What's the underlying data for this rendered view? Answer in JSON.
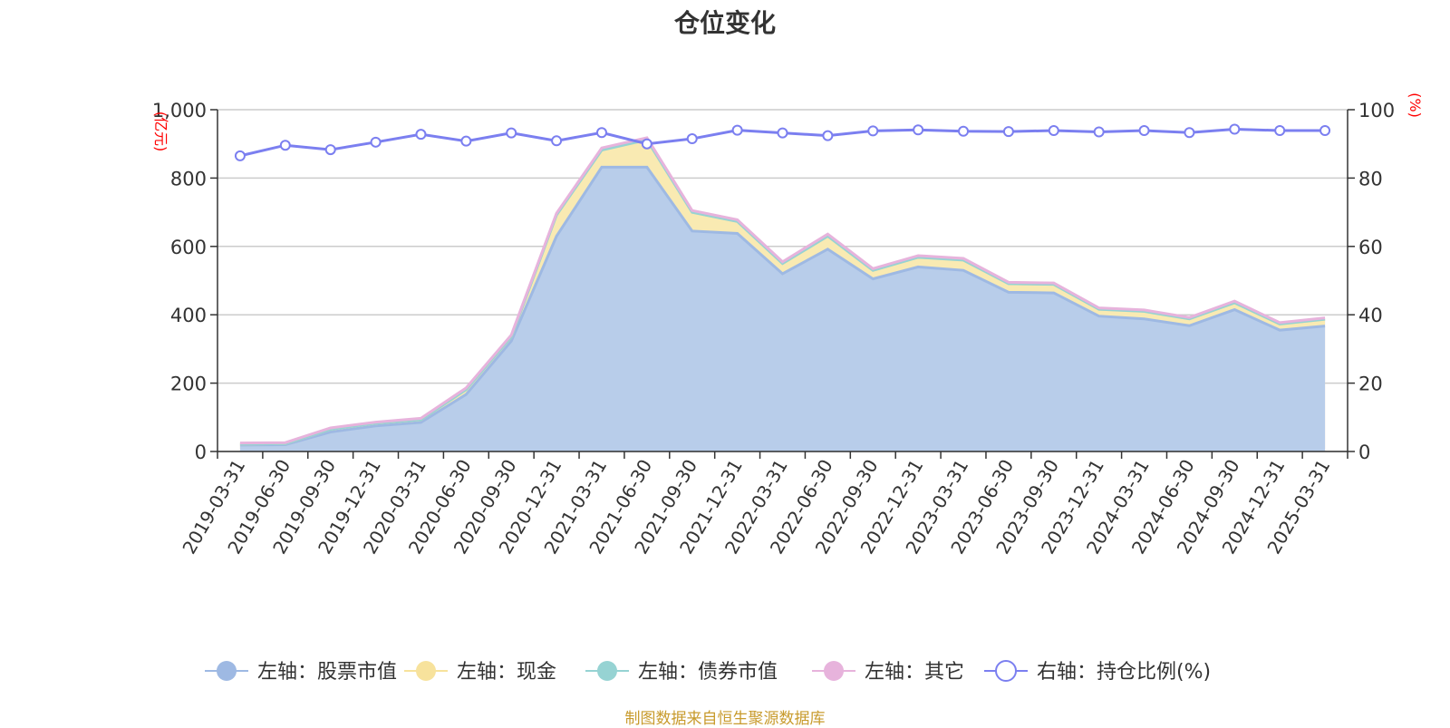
{
  "chart_data": {
    "type": "area",
    "title": "仓位变化",
    "y_left_unit": "(亿元)",
    "y_right_unit": "(%)",
    "y_left_ticks": [
      "0",
      "200",
      "400",
      "600",
      "800",
      "1,000"
    ],
    "y_right_ticks": [
      "0",
      "20",
      "40",
      "60",
      "80",
      "100"
    ],
    "y_left_range": [
      0,
      1000
    ],
    "y_right_range": [
      0,
      100
    ],
    "grid": true,
    "legend_position": "bottom",
    "categories": [
      "2019-03-31",
      "2019-06-30",
      "2019-09-30",
      "2019-12-31",
      "2020-03-31",
      "2020-06-30",
      "2020-09-30",
      "2020-12-31",
      "2021-03-31",
      "2021-06-30",
      "2021-09-30",
      "2021-12-31",
      "2022-03-31",
      "2022-06-30",
      "2022-09-30",
      "2022-12-31",
      "2023-03-31",
      "2023-06-30",
      "2023-09-30",
      "2023-12-31",
      "2024-03-31",
      "2024-06-30",
      "2024-09-30",
      "2024-12-31",
      "2025-03-31"
    ],
    "series": [
      {
        "name": "左轴：股票市值",
        "axis": "left",
        "color": "#9eb9e3",
        "fill": "#b8cdea",
        "values": [
          19,
          20,
          57,
          75,
          85,
          167,
          323,
          630,
          832,
          832,
          645,
          638,
          520,
          592,
          505,
          540,
          530,
          466,
          464,
          396,
          388,
          368,
          415,
          355,
          367
        ]
      },
      {
        "name": "左轴：现金",
        "axis": "left",
        "color": "#f7e29c",
        "fill": "#f9eab2",
        "values": [
          3,
          3,
          8,
          8,
          8,
          14,
          13,
          62,
          50,
          80,
          55,
          35,
          30,
          38,
          25,
          28,
          30,
          25,
          25,
          20,
          22,
          20,
          20,
          18,
          20
        ]
      },
      {
        "name": "左轴：债券市值",
        "axis": "left",
        "color": "#96d3d3",
        "fill": "#b9e2e2",
        "values": [
          0,
          0,
          0,
          0,
          0,
          0,
          0,
          0,
          0,
          0,
          0,
          0,
          0,
          0,
          0,
          0,
          0,
          0,
          0,
          0,
          0,
          0,
          0,
          0,
          0
        ]
      },
      {
        "name": "左轴：其它",
        "axis": "left",
        "color": "#e7b3dc",
        "fill": "#ecc6e6",
        "values": [
          3,
          3,
          4,
          3,
          4,
          5,
          5,
          5,
          6,
          6,
          5,
          5,
          5,
          6,
          5,
          5,
          5,
          4,
          4,
          4,
          4,
          4,
          5,
          4,
          4
        ]
      },
      {
        "name": "右轴：持仓比例(%)",
        "axis": "right",
        "color": "#7b7ff0",
        "values": [
          86.5,
          89.6,
          88.3,
          90.5,
          92.8,
          90.8,
          93.2,
          90.9,
          93.3,
          90.0,
          91.5,
          94.0,
          93.2,
          92.4,
          93.8,
          94.1,
          93.7,
          93.6,
          93.9,
          93.5,
          93.9,
          93.3,
          94.3,
          93.9,
          93.9
        ]
      }
    ]
  },
  "footer": {
    "source": "制图数据来自恒生聚源数据库"
  }
}
